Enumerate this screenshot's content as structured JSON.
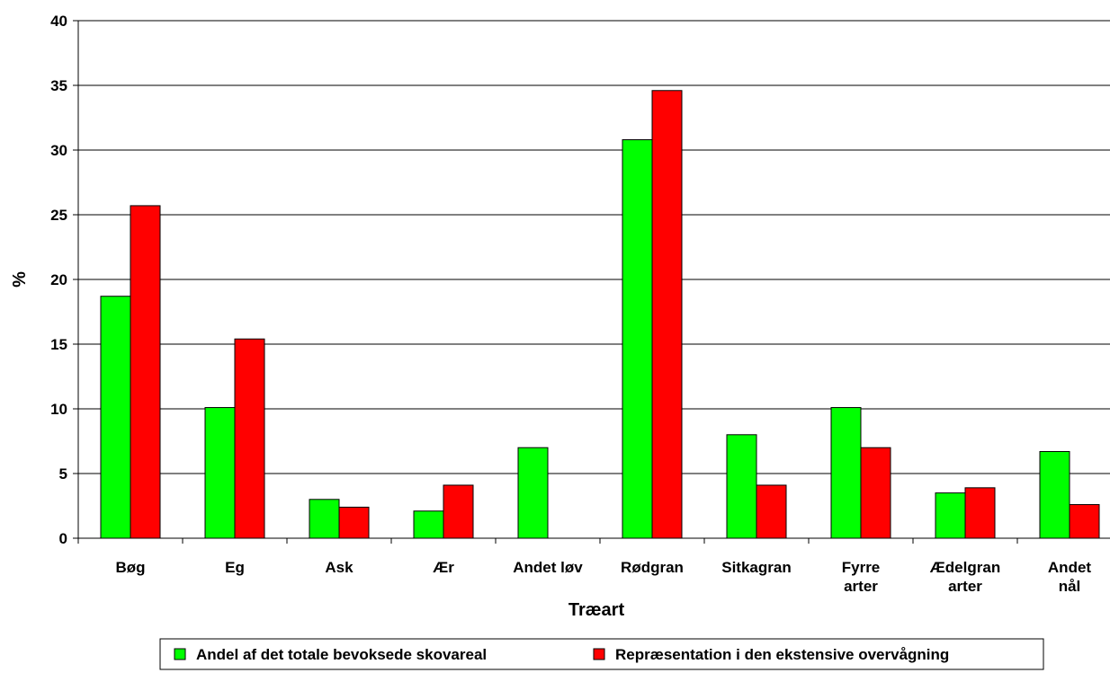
{
  "chart_data": {
    "type": "bar",
    "title": "",
    "xlabel": "Træart",
    "ylabel": "%",
    "ylim": [
      0,
      40
    ],
    "yticks": [
      0,
      5,
      10,
      15,
      20,
      25,
      30,
      35,
      40
    ],
    "grid": true,
    "legend_position": "bottom",
    "categories": [
      [
        "Bøg"
      ],
      [
        "Eg"
      ],
      [
        "Ask"
      ],
      [
        "Ær"
      ],
      [
        "Andet løv"
      ],
      [
        "Rødgran"
      ],
      [
        "Sitkagran"
      ],
      [
        "Fyrre",
        "arter"
      ],
      [
        "Ædelgran",
        "arter"
      ],
      [
        "Andet",
        "nål"
      ]
    ],
    "series": [
      {
        "name": "Andel af det totale bevoksede skovareal",
        "color": "#00ff00",
        "values": [
          18.7,
          10.1,
          3.0,
          2.1,
          7.0,
          30.8,
          8.0,
          10.1,
          3.5,
          6.7
        ]
      },
      {
        "name": "Repræsentation i den ekstensive overvågning",
        "color": "#ff0000",
        "values": [
          25.7,
          15.4,
          2.4,
          4.1,
          0.0,
          34.6,
          4.1,
          7.0,
          3.9,
          2.6
        ]
      }
    ]
  }
}
